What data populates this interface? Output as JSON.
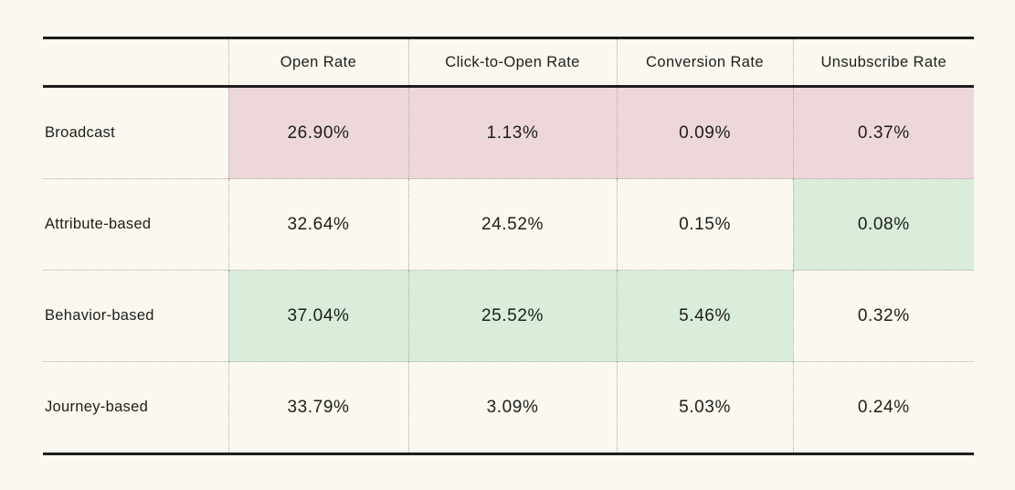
{
  "colors": {
    "page_bg": "#faf8ef",
    "text": "#1d1d1b",
    "line_strong": "#1d1d1b",
    "line_dotted": "#afaba0",
    "highlight_bad": "#edd7da",
    "highlight_good": "#d9edda"
  },
  "table": {
    "columns": {
      "label": "",
      "open_rate": "Open Rate",
      "click_to_open_rate": "Click-to-Open Rate",
      "conversion_rate": "Conversion Rate",
      "unsubscribe_rate": "Unsubscribe Rate"
    },
    "rows": [
      {
        "label": "Broadcast",
        "cells": [
          {
            "value": "26.90%",
            "state": "bad"
          },
          {
            "value": "1.13%",
            "state": "bad"
          },
          {
            "value": "0.09%",
            "state": "bad"
          },
          {
            "value": "0.37%",
            "state": "bad"
          }
        ]
      },
      {
        "label": "Attribute-based",
        "cells": [
          {
            "value": "32.64%",
            "state": ""
          },
          {
            "value": "24.52%",
            "state": ""
          },
          {
            "value": "0.15%",
            "state": ""
          },
          {
            "value": "0.08%",
            "state": "good"
          }
        ]
      },
      {
        "label": "Behavior-based",
        "cells": [
          {
            "value": "37.04%",
            "state": "good"
          },
          {
            "value": "25.52%",
            "state": "good"
          },
          {
            "value": "5.46%",
            "state": "good"
          },
          {
            "value": "0.32%",
            "state": ""
          }
        ]
      },
      {
        "label": "Journey-based",
        "cells": [
          {
            "value": "33.79%",
            "state": ""
          },
          {
            "value": "3.09%",
            "state": ""
          },
          {
            "value": "5.03%",
            "state": ""
          },
          {
            "value": "0.24%",
            "state": ""
          }
        ]
      }
    ]
  },
  "chart_data": {
    "type": "table",
    "title": "",
    "columns": [
      "Open Rate",
      "Click-to-Open Rate",
      "Conversion Rate",
      "Unsubscribe Rate"
    ],
    "row_labels": [
      "Broadcast",
      "Attribute-based",
      "Behavior-based",
      "Journey-based"
    ],
    "values_percent": [
      [
        26.9,
        1.13,
        0.09,
        0.37
      ],
      [
        32.64,
        24.52,
        0.15,
        0.08
      ],
      [
        37.04,
        25.52,
        5.46,
        0.32
      ],
      [
        33.79,
        3.09,
        5.03,
        0.24
      ]
    ],
    "unit": "%",
    "highlighted_worst_cells": [
      [
        0,
        0
      ],
      [
        0,
        1
      ],
      [
        0,
        2
      ],
      [
        0,
        3
      ]
    ],
    "highlighted_best_cells": [
      [
        1,
        3
      ],
      [
        2,
        0
      ],
      [
        2,
        1
      ],
      [
        2,
        2
      ]
    ]
  }
}
